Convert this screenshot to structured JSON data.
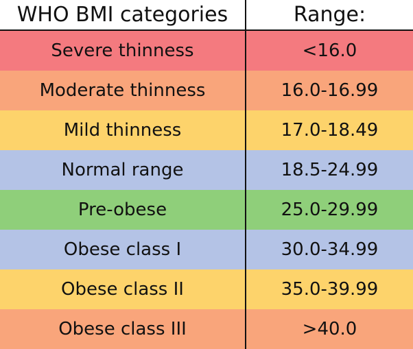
{
  "table": {
    "header": [
      "WHO BMI categories",
      "Range:"
    ],
    "rows": [
      [
        "Severe thinness",
        "<16.0"
      ],
      [
        "Moderate thinness",
        "16.0-16.99"
      ],
      [
        "Mild thinness",
        "17.0-18.49"
      ],
      [
        "Normal range",
        "18.5-24.99"
      ],
      [
        "Pre-obese",
        "25.0-29.99"
      ],
      [
        "Obese class I",
        "30.0-34.99"
      ],
      [
        "Obese class II",
        "35.0-39.99"
      ],
      [
        "Obese class III",
        ">40.0"
      ]
    ]
  }
}
